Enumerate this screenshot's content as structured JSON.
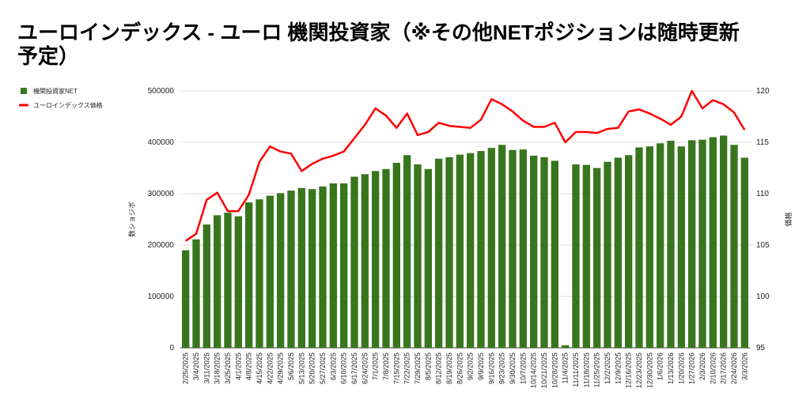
{
  "chart_data": {
    "type": "bar-line",
    "title": "ユーロインデックス - ユーロ 機関投資家（※その他NETポジションは随時更新予定）",
    "y_label": "数ショジボ",
    "y2_label": "価格",
    "legend": "top-left",
    "grid": true,
    "categories": [
      "2/25/2025",
      "3/4/2025",
      "3/11/2025",
      "3/18/2025",
      "3/25/2025",
      "4/1/2025",
      "4/8/2025",
      "4/15/2025",
      "4/22/2025",
      "4/29/2025",
      "5/6/2025",
      "5/13/2025",
      "5/20/2025",
      "5/27/2025",
      "6/3/2025",
      "6/10/2025",
      "6/17/2025",
      "6/24/2025",
      "7/1/2025",
      "7/8/2025",
      "7/15/2025",
      "7/22/2025",
      "7/29/2025",
      "8/5/2025",
      "8/12/2025",
      "8/19/2025",
      "8/26/2025",
      "9/2/2025",
      "9/9/2025",
      "9/16/2025",
      "9/23/2025",
      "9/30/2025",
      "10/7/2025",
      "10/14/2025",
      "10/21/2025",
      "10/28/2025",
      "11/4/2025",
      "11/11/2025",
      "11/18/2025",
      "11/25/2025",
      "12/2/2025",
      "12/9/2025",
      "12/16/2025",
      "12/23/2025",
      "12/30/2025",
      "1/6/2026",
      "1/13/2026",
      "1/20/2026",
      "1/27/2026",
      "2/3/2026",
      "2/10/2026",
      "2/17/2026",
      "2/24/2026",
      "3/3/2026"
    ],
    "series": [
      {
        "name": "機関投資家NET",
        "color": "#38761d",
        "type": "bar",
        "values": [
          190000,
          211000,
          240000,
          258000,
          263000,
          256000,
          283000,
          289000,
          296000,
          301000,
          306000,
          311000,
          309000,
          314000,
          320000,
          320000,
          333000,
          338000,
          344000,
          348000,
          360000,
          375000,
          357000,
          348000,
          368000,
          371000,
          376000,
          379000,
          383000,
          389000,
          395000,
          385000,
          386000,
          374000,
          371000,
          364000,
          5000,
          357000,
          356000,
          350000,
          362000,
          370000,
          375000,
          390000,
          392000,
          398000,
          403000,
          392000,
          404000,
          405000,
          410000,
          413000,
          395000,
          370000
        ]
      },
      {
        "name": "ユーロインデックス価格",
        "color": "#ff0000",
        "type": "line",
        "axis": "y2",
        "values": [
          105.4,
          106.1,
          109.4,
          110.1,
          108.3,
          108.3,
          109.9,
          113.1,
          114.6,
          114.1,
          113.9,
          112.2,
          112.9,
          113.4,
          113.7,
          114.1,
          115.4,
          116.7,
          118.3,
          117.6,
          116.4,
          117.8,
          115.7,
          116.0,
          116.9,
          116.6,
          116.5,
          116.4,
          117.2,
          119.2,
          118.7,
          118.0,
          117.1,
          116.5,
          116.5,
          116.9,
          115.0,
          116.0,
          116.0,
          115.9,
          116.3,
          116.4,
          118.0,
          118.2,
          117.8,
          117.3,
          116.7,
          117.5,
          120.0,
          118.3,
          119.1,
          118.7,
          117.9,
          116.2
        ]
      }
    ],
    "ylim": [
      0,
      500000
    ],
    "yticks": [
      0,
      100000,
      200000,
      300000,
      400000,
      500000
    ],
    "y2lim": [
      95,
      120
    ],
    "y2ticks": [
      95,
      100,
      105,
      110,
      115,
      120
    ]
  }
}
